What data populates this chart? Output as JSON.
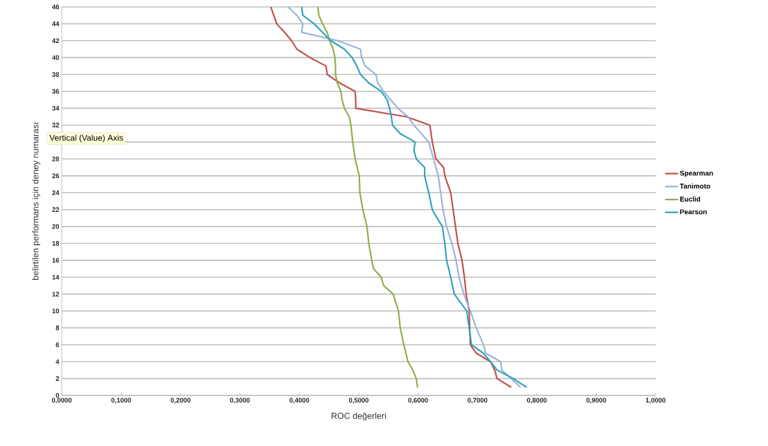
{
  "chart_data": {
    "type": "line",
    "xlabel": "ROC değerleri",
    "ylabel": "belirtilen performans için deney numarası",
    "annotations": [
      "Vertical (Value) Axis"
    ],
    "xlim": [
      0,
      1
    ],
    "ylim": [
      0,
      46
    ],
    "xticks": [
      {
        "value": 0,
        "label": "0,0000"
      },
      {
        "value": 0.1,
        "label": "0,1000"
      },
      {
        "value": 0.2,
        "label": "0,2000"
      },
      {
        "value": 0.3,
        "label": "0,3000"
      },
      {
        "value": 0.4,
        "label": "0,4000"
      },
      {
        "value": 0.5,
        "label": "0,5000"
      },
      {
        "value": 0.6,
        "label": "0,6000"
      },
      {
        "value": 0.7,
        "label": "0,7000"
      },
      {
        "value": 0.8,
        "label": "0,8000"
      },
      {
        "value": 0.9,
        "label": "0,9000"
      },
      {
        "value": 1,
        "label": "1,0000"
      }
    ],
    "yticks": [
      0,
      2,
      4,
      6,
      8,
      10,
      12,
      14,
      16,
      18,
      20,
      22,
      24,
      26,
      28,
      30,
      32,
      34,
      36,
      38,
      40,
      42,
      44,
      46
    ],
    "grid": "y",
    "legend": "right",
    "series": [
      {
        "name": "Spearman",
        "color": "#c0504d",
        "x": [
          0.756,
          0.733,
          0.729,
          0.722,
          0.698,
          0.688,
          0.687,
          0.686,
          0.681,
          0.678,
          0.674,
          0.667,
          0.663,
          0.659,
          0.655,
          0.645,
          0.643,
          0.63,
          0.624,
          0.62,
          0.58,
          0.495,
          0.495,
          0.494,
          0.468,
          0.447,
          0.445,
          0.418,
          0.396,
          0.387,
          0.375,
          0.362,
          0.357,
          0.352
        ],
        "values": [
          1,
          2,
          3,
          4,
          5,
          6,
          8,
          10,
          12,
          14,
          16,
          18,
          20,
          22,
          24,
          26,
          27,
          28,
          30,
          32,
          33,
          34,
          35,
          36,
          37,
          38,
          39,
          40,
          41,
          42,
          43,
          44,
          45,
          46
        ]
      },
      {
        "name": "Tanimoto",
        "color": "#9bb3dc",
        "x": [
          0.772,
          0.757,
          0.741,
          0.739,
          0.714,
          0.71,
          0.698,
          0.688,
          0.677,
          0.669,
          0.664,
          0.657,
          0.648,
          0.642,
          0.638,
          0.634,
          0.626,
          0.618,
          0.593,
          0.583,
          0.566,
          0.554,
          0.542,
          0.532,
          0.529,
          0.511,
          0.505,
          0.503,
          0.465,
          0.404,
          0.406,
          0.396,
          0.381
        ],
        "values": [
          1,
          2,
          3,
          4,
          5,
          6,
          8,
          10,
          12,
          14,
          16,
          18,
          20,
          22,
          24,
          26,
          28,
          30,
          32,
          33,
          34,
          35,
          36,
          37,
          38,
          39,
          40,
          41,
          42,
          43,
          44,
          45,
          46
        ]
      },
      {
        "name": "Euclid",
        "color": "#8db04a",
        "x": [
          0.599,
          0.597,
          0.591,
          0.583,
          0.576,
          0.57,
          0.567,
          0.558,
          0.542,
          0.538,
          0.525,
          0.522,
          0.517,
          0.514,
          0.507,
          0.502,
          0.501,
          0.494,
          0.49,
          0.487,
          0.484,
          0.476,
          0.472,
          0.47,
          0.464,
          0.461,
          0.461,
          0.46,
          0.457,
          0.451,
          0.447,
          0.439,
          0.433,
          0.431
        ],
        "values": [
          1,
          2,
          3,
          4,
          6,
          8,
          10,
          12,
          13,
          14,
          15,
          16,
          18,
          20,
          22,
          24,
          26,
          28,
          30,
          32,
          33,
          34,
          35,
          36,
          37,
          38,
          39,
          40,
          41,
          42,
          43,
          44,
          45,
          46
        ]
      },
      {
        "name": "Pearson",
        "color": "#31a2bd",
        "x": [
          0.782,
          0.76,
          0.733,
          0.722,
          0.71,
          0.69,
          0.686,
          0.682,
          0.661,
          0.655,
          0.648,
          0.645,
          0.641,
          0.632,
          0.624,
          0.618,
          0.611,
          0.611,
          0.597,
          0.593,
          0.595,
          0.57,
          0.557,
          0.555,
          0.552,
          0.548,
          0.538,
          0.517,
          0.503,
          0.497,
          0.489,
          0.476,
          0.453,
          0.439,
          0.425,
          0.406,
          0.404
        ],
        "values": [
          1,
          2,
          3,
          4,
          5,
          6,
          8,
          10,
          12,
          14,
          16,
          18,
          20,
          21,
          22,
          24,
          26,
          27,
          28,
          29,
          30,
          31,
          32,
          33,
          34,
          35,
          36,
          37,
          38,
          39,
          40,
          41,
          42,
          43,
          44,
          45,
          46
        ]
      }
    ]
  }
}
